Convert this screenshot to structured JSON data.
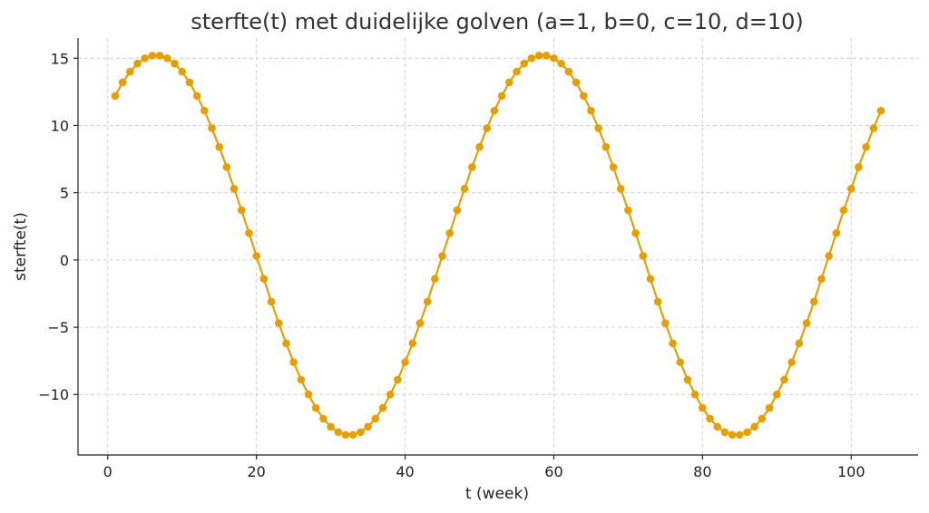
{
  "chart_data": {
    "type": "line",
    "title": "sterfte(t) met duidelijke golven (a=1, b=0, c=10, d=10)",
    "xlabel": "t (week)",
    "ylabel": "sterfte(t)",
    "xlim": [
      -4,
      109
    ],
    "ylim": [
      -14.5,
      16.5
    ],
    "xticks": [
      0,
      20,
      40,
      60,
      80,
      100
    ],
    "yticks": [
      -10,
      -5,
      0,
      5,
      10,
      15
    ],
    "ytick_labels": [
      "−10",
      "−5",
      "0",
      "5",
      "10",
      "15"
    ],
    "grid": true,
    "legend": "none",
    "series": [
      {
        "color": "#E69F00",
        "marker": "circle",
        "x": [
          1,
          2,
          3,
          4,
          5,
          6,
          7,
          8,
          9,
          10,
          11,
          12,
          13,
          14,
          15,
          16,
          17,
          18,
          19,
          20,
          21,
          22,
          23,
          24,
          25,
          26,
          27,
          28,
          29,
          30,
          31,
          32,
          33,
          34,
          35,
          36,
          37,
          38,
          39,
          40,
          41,
          42,
          43,
          44,
          45,
          46,
          47,
          48,
          49,
          50,
          51,
          52,
          53,
          54,
          55,
          56,
          57,
          58,
          59,
          60,
          61,
          62,
          63,
          64,
          65,
          66,
          67,
          68,
          69,
          70,
          71,
          72,
          73,
          74,
          75,
          76,
          77,
          78,
          79,
          80,
          81,
          82,
          83,
          84,
          85,
          86,
          87,
          88,
          89,
          90,
          91,
          92,
          93,
          94,
          95,
          96,
          97,
          98,
          99,
          100,
          101,
          102,
          103,
          104
        ],
        "y": [
          12.2,
          13.2,
          14.0,
          14.6,
          15.0,
          15.2,
          15.2,
          15.0,
          14.6,
          14.0,
          13.2,
          12.2,
          11.1,
          9.8,
          8.4,
          6.9,
          5.3,
          3.7,
          2.0,
          0.3,
          -1.4,
          -3.1,
          -4.7,
          -6.2,
          -7.6,
          -8.9,
          -10.0,
          -11.0,
          -11.8,
          -12.4,
          -12.8,
          -13.0,
          -13.0,
          -12.8,
          -12.4,
          -11.8,
          -11.0,
          -10.0,
          -8.9,
          -7.6,
          -6.2,
          -4.7,
          -3.1,
          -1.4,
          0.3,
          2.0,
          3.7,
          5.3,
          6.9,
          8.4,
          9.8,
          11.1,
          12.2,
          13.2,
          14.0,
          14.6,
          15.0,
          15.2,
          15.2,
          15.0,
          14.6,
          14.0,
          13.2,
          12.2,
          11.1,
          9.8,
          8.4,
          6.9,
          5.3,
          3.7,
          2.0,
          0.3,
          -1.4,
          -3.1,
          -4.7,
          -6.2,
          -7.6,
          -8.9,
          -10.0,
          -11.0,
          -11.8,
          -12.4,
          -12.8,
          -13.0,
          -13.0,
          -12.8,
          -12.4,
          -11.8,
          -11.0,
          -10.0,
          -8.9,
          -7.6,
          -6.2,
          -4.7,
          -3.1,
          -1.4,
          0.3,
          2.0,
          3.7,
          5.3,
          6.9,
          8.4,
          9.8,
          11.1
        ]
      }
    ]
  }
}
